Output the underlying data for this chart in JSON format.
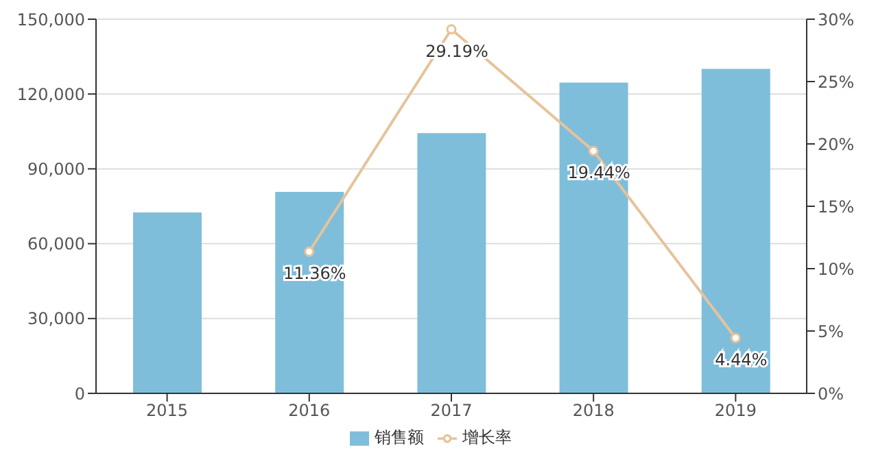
{
  "chart_data": {
    "type": "bar",
    "categories": [
      "2015",
      "2016",
      "2017",
      "2018",
      "2019"
    ],
    "series": [
      {
        "name": "销售额",
        "color": "#7fbedb",
        "values": [
          72500,
          80800,
          104300,
          124600,
          130100
        ]
      },
      {
        "name": "增长率",
        "type": "line",
        "axis": "y2",
        "color": "#e6c39b",
        "values": [
          null,
          11.36,
          29.19,
          19.44,
          4.44
        ],
        "value_labels": [
          null,
          "11.36%",
          "29.19%",
          "19.44%",
          "4.44%"
        ]
      }
    ],
    "ylim": [
      0,
      150000
    ],
    "yticks": [
      0,
      {
        "value": 30000,
        "label": "30,000"
      },
      {
        "value": 60000,
        "label": "60,000"
      },
      {
        "value": 90000,
        "label": "90,000"
      },
      {
        "value": 120000,
        "label": "120,000"
      },
      {
        "value": 150000,
        "label": "150,000"
      }
    ],
    "y2lim": [
      0,
      30
    ],
    "y2ticks": [
      {
        "value": 0,
        "label": "0%"
      },
      {
        "value": 5,
        "label": "5%"
      },
      {
        "value": 10,
        "label": "10%"
      },
      {
        "value": 15,
        "label": "15%"
      },
      {
        "value": 20,
        "label": "20%"
      },
      {
        "value": 25,
        "label": "25%"
      },
      {
        "value": 30,
        "label": "30%"
      }
    ],
    "grid": "y",
    "legend": "bottom",
    "marker": "circle",
    "line_style": "solid"
  }
}
